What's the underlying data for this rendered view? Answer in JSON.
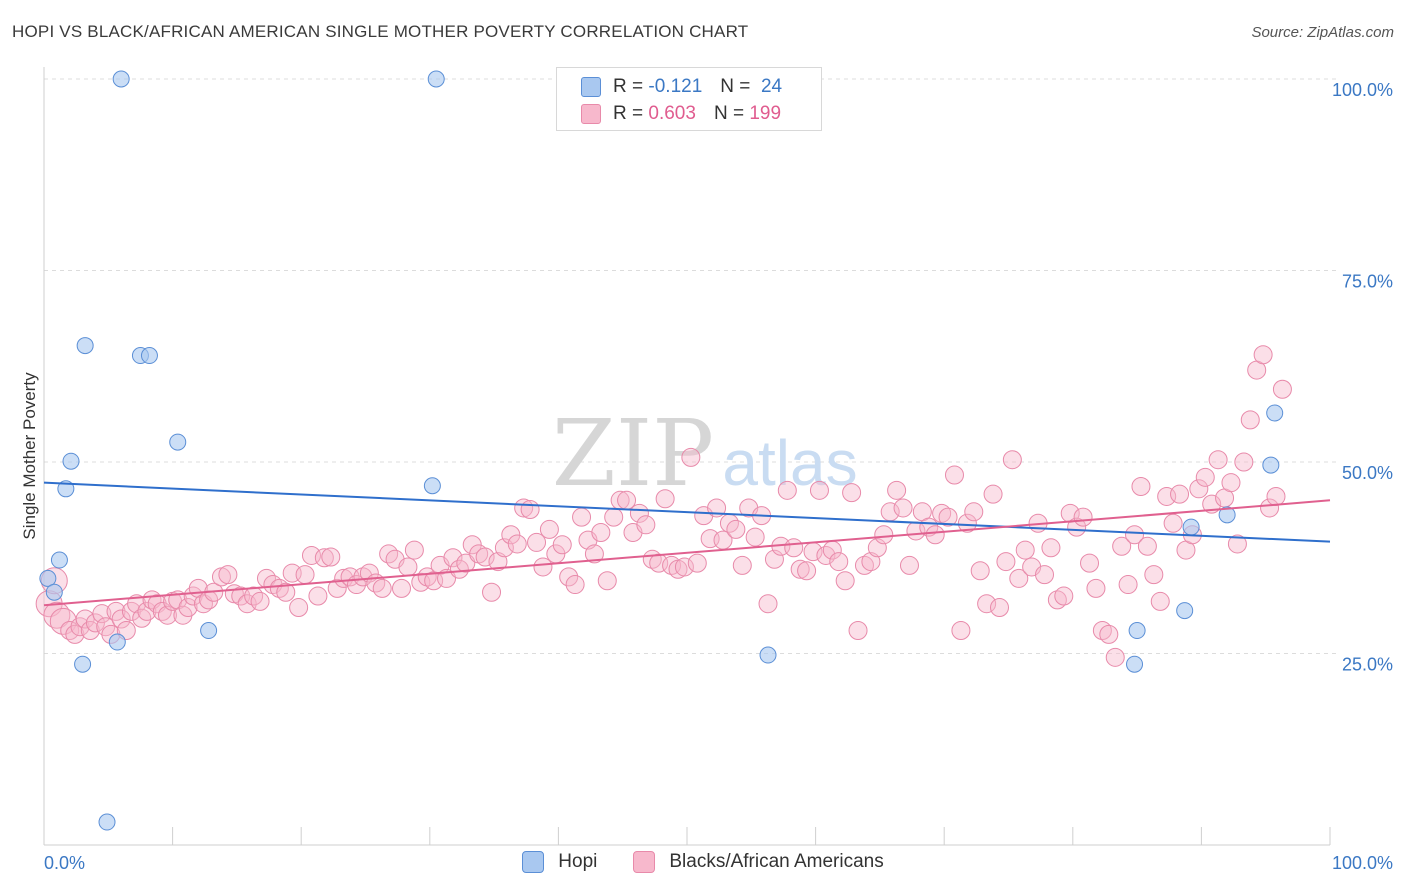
{
  "header": {
    "title": "HOPI VS BLACK/AFRICAN AMERICAN SINGLE MOTHER POVERTY CORRELATION CHART",
    "source": "Source: ZipAtlas.com"
  },
  "watermark": {
    "zip": "ZIP",
    "atlas": "atlas"
  },
  "legend": {
    "rows": [
      {
        "r_label": "R =",
        "r_value": "-0.121",
        "n_label": "N =",
        "n_value": "24",
        "color": "#a9c8f0"
      },
      {
        "r_label": "R =",
        "r_value": "0.603",
        "n_label": "N =",
        "n_value": "199",
        "color": "#f7b8cc"
      }
    ]
  },
  "bottom_legend": {
    "series1": "Hopi",
    "series2": "Blacks/African Americans"
  },
  "colors": {
    "hopi_fill": "#a9c8f0",
    "hopi_stroke": "#5b8fd6",
    "hopi_line": "#2f6fcc",
    "black_fill": "#f7b8cc",
    "black_stroke": "#e88aaa",
    "black_line": "#e0608f",
    "tick_label": "#3b78c4",
    "grid": "#dcdcdc"
  },
  "chart_data": {
    "type": "scatter",
    "title": "HOPI VS BLACK/AFRICAN AMERICAN SINGLE MOTHER POVERTY CORRELATION CHART",
    "xlabel": "",
    "ylabel": "Single Mother Poverty",
    "x_tick_labels": [
      "0.0%",
      "100.0%"
    ],
    "y_tick_labels": [
      "25.0%",
      "50.0%",
      "75.0%",
      "100.0%"
    ],
    "xlim": [
      0,
      100
    ],
    "ylim": [
      0,
      100
    ],
    "grid": true,
    "legend_position": "top-center",
    "series": [
      {
        "name": "Hopi",
        "stats": {
          "R": -0.121,
          "N": 24
        },
        "trend": [
          [
            0,
            47.3
          ],
          [
            100,
            39.6
          ]
        ],
        "points": [
          [
            0.3,
            34.8
          ],
          [
            0.8,
            33.0
          ],
          [
            1.2,
            37.2
          ],
          [
            1.7,
            46.5
          ],
          [
            2.1,
            50.1
          ],
          [
            3.0,
            23.6
          ],
          [
            3.2,
            65.2
          ],
          [
            5.7,
            26.5
          ],
          [
            6.0,
            100.0
          ],
          [
            4.9,
            3.0
          ],
          [
            7.5,
            63.9
          ],
          [
            8.2,
            63.9
          ],
          [
            10.4,
            52.6
          ],
          [
            12.8,
            28.0
          ],
          [
            30.2,
            46.9
          ],
          [
            30.5,
            100.0
          ],
          [
            56.3,
            24.8
          ],
          [
            84.8,
            23.6
          ],
          [
            85.0,
            28.0
          ],
          [
            88.7,
            30.6
          ],
          [
            89.2,
            41.5
          ],
          [
            92.0,
            43.1
          ],
          [
            95.4,
            49.6
          ],
          [
            95.7,
            56.4
          ]
        ]
      },
      {
        "name": "Blacks/African Americans",
        "stats": {
          "R": 0.603,
          "N": 199
        },
        "trend": [
          [
            0,
            31.3
          ],
          [
            100,
            45.0
          ]
        ],
        "points": [
          [
            0.4,
            31.5
          ],
          [
            0.8,
            34.5
          ],
          [
            1.0,
            30.0
          ],
          [
            1.5,
            29.2
          ],
          [
            2.0,
            28.0
          ],
          [
            2.4,
            27.5
          ],
          [
            2.8,
            28.5
          ],
          [
            3.2,
            29.5
          ],
          [
            3.6,
            28.0
          ],
          [
            4.0,
            29.0
          ],
          [
            4.5,
            30.2
          ],
          [
            4.8,
            28.5
          ],
          [
            5.2,
            27.5
          ],
          [
            5.6,
            30.5
          ],
          [
            6.0,
            29.5
          ],
          [
            6.4,
            28.0
          ],
          [
            6.8,
            30.5
          ],
          [
            7.2,
            31.5
          ],
          [
            7.6,
            29.6
          ],
          [
            8.0,
            30.5
          ],
          [
            8.4,
            32.0
          ],
          [
            8.8,
            31.5
          ],
          [
            9.2,
            30.5
          ],
          [
            9.6,
            30.0
          ],
          [
            10.0,
            31.8
          ],
          [
            10.4,
            32.0
          ],
          [
            10.8,
            30.0
          ],
          [
            11.2,
            31.0
          ],
          [
            11.6,
            32.5
          ],
          [
            12.0,
            33.5
          ],
          [
            12.4,
            31.5
          ],
          [
            12.8,
            32.0
          ],
          [
            13.2,
            33.0
          ],
          [
            13.8,
            35.0
          ],
          [
            14.3,
            35.3
          ],
          [
            14.8,
            32.8
          ],
          [
            15.3,
            32.5
          ],
          [
            15.8,
            31.5
          ],
          [
            16.3,
            32.5
          ],
          [
            16.8,
            31.8
          ],
          [
            17.3,
            34.8
          ],
          [
            17.8,
            34.0
          ],
          [
            18.3,
            33.5
          ],
          [
            18.8,
            33.0
          ],
          [
            19.3,
            35.5
          ],
          [
            19.8,
            31.0
          ],
          [
            20.3,
            35.3
          ],
          [
            20.8,
            37.8
          ],
          [
            21.3,
            32.5
          ],
          [
            21.8,
            37.5
          ],
          [
            22.3,
            37.6
          ],
          [
            22.8,
            33.5
          ],
          [
            23.3,
            34.8
          ],
          [
            23.8,
            35.0
          ],
          [
            24.3,
            34.0
          ],
          [
            24.8,
            35.0
          ],
          [
            25.3,
            35.5
          ],
          [
            25.8,
            34.2
          ],
          [
            26.3,
            33.5
          ],
          [
            26.8,
            38.0
          ],
          [
            27.3,
            37.3
          ],
          [
            27.8,
            33.5
          ],
          [
            28.3,
            36.3
          ],
          [
            28.8,
            38.5
          ],
          [
            29.3,
            34.3
          ],
          [
            29.8,
            35.0
          ],
          [
            30.3,
            34.5
          ],
          [
            30.8,
            36.5
          ],
          [
            31.3,
            34.8
          ],
          [
            31.8,
            37.5
          ],
          [
            32.3,
            36.0
          ],
          [
            32.8,
            36.8
          ],
          [
            33.3,
            39.2
          ],
          [
            33.8,
            38.0
          ],
          [
            34.3,
            37.6
          ],
          [
            34.8,
            33.0
          ],
          [
            35.3,
            37.0
          ],
          [
            35.8,
            38.8
          ],
          [
            36.3,
            40.5
          ],
          [
            36.8,
            39.3
          ],
          [
            37.3,
            44.0
          ],
          [
            37.8,
            43.8
          ],
          [
            38.3,
            39.5
          ],
          [
            38.8,
            36.3
          ],
          [
            39.3,
            41.2
          ],
          [
            39.8,
            38.0
          ],
          [
            40.3,
            39.2
          ],
          [
            40.8,
            35.0
          ],
          [
            41.3,
            34.0
          ],
          [
            41.8,
            42.8
          ],
          [
            42.3,
            39.8
          ],
          [
            42.8,
            38.0
          ],
          [
            43.3,
            40.8
          ],
          [
            43.8,
            34.5
          ],
          [
            44.3,
            42.8
          ],
          [
            44.8,
            45.0
          ],
          [
            45.3,
            45.0
          ],
          [
            45.8,
            40.8
          ],
          [
            46.3,
            43.3
          ],
          [
            46.8,
            41.8
          ],
          [
            47.3,
            37.3
          ],
          [
            47.8,
            36.8
          ],
          [
            48.3,
            45.2
          ],
          [
            48.8,
            36.5
          ],
          [
            49.3,
            36.0
          ],
          [
            49.8,
            36.3
          ],
          [
            50.3,
            50.6
          ],
          [
            50.8,
            36.8
          ],
          [
            51.3,
            43.0
          ],
          [
            51.8,
            40.0
          ],
          [
            52.3,
            44.0
          ],
          [
            52.8,
            39.8
          ],
          [
            53.3,
            42.0
          ],
          [
            53.8,
            41.2
          ],
          [
            54.3,
            36.5
          ],
          [
            54.8,
            44.0
          ],
          [
            55.3,
            40.2
          ],
          [
            55.8,
            43.0
          ],
          [
            56.3,
            31.5
          ],
          [
            56.8,
            37.3
          ],
          [
            57.3,
            39.0
          ],
          [
            57.8,
            46.3
          ],
          [
            58.3,
            38.8
          ],
          [
            58.8,
            36.0
          ],
          [
            59.3,
            35.8
          ],
          [
            59.8,
            38.3
          ],
          [
            60.3,
            46.3
          ],
          [
            60.8,
            37.8
          ],
          [
            61.3,
            38.5
          ],
          [
            61.8,
            37.0
          ],
          [
            62.3,
            34.5
          ],
          [
            62.8,
            46.0
          ],
          [
            63.3,
            28.0
          ],
          [
            63.8,
            36.5
          ],
          [
            64.3,
            37.0
          ],
          [
            64.8,
            38.8
          ],
          [
            65.3,
            40.5
          ],
          [
            65.8,
            43.5
          ],
          [
            66.3,
            46.3
          ],
          [
            66.8,
            44.0
          ],
          [
            67.3,
            36.5
          ],
          [
            67.8,
            41.0
          ],
          [
            68.3,
            43.5
          ],
          [
            68.8,
            41.5
          ],
          [
            69.3,
            40.5
          ],
          [
            69.8,
            43.3
          ],
          [
            70.3,
            42.8
          ],
          [
            70.8,
            48.3
          ],
          [
            71.3,
            28.0
          ],
          [
            71.8,
            42.0
          ],
          [
            72.3,
            43.5
          ],
          [
            72.8,
            35.8
          ],
          [
            73.3,
            31.5
          ],
          [
            73.8,
            45.8
          ],
          [
            74.3,
            31.0
          ],
          [
            74.8,
            37.0
          ],
          [
            75.3,
            50.3
          ],
          [
            75.8,
            34.8
          ],
          [
            76.3,
            38.5
          ],
          [
            76.8,
            36.3
          ],
          [
            77.3,
            42.0
          ],
          [
            77.8,
            35.3
          ],
          [
            78.3,
            38.8
          ],
          [
            78.8,
            32.0
          ],
          [
            79.3,
            32.5
          ],
          [
            79.8,
            43.3
          ],
          [
            80.3,
            41.5
          ],
          [
            80.8,
            42.8
          ],
          [
            81.3,
            36.8
          ],
          [
            81.8,
            33.5
          ],
          [
            82.3,
            28.0
          ],
          [
            82.8,
            27.5
          ],
          [
            83.3,
            24.5
          ],
          [
            83.8,
            39.0
          ],
          [
            84.3,
            34.0
          ],
          [
            84.8,
            40.5
          ],
          [
            85.3,
            46.8
          ],
          [
            85.8,
            39.0
          ],
          [
            86.3,
            35.3
          ],
          [
            86.8,
            31.8
          ],
          [
            87.3,
            45.5
          ],
          [
            87.8,
            42.0
          ],
          [
            88.3,
            45.8
          ],
          [
            88.8,
            38.5
          ],
          [
            89.3,
            40.5
          ],
          [
            89.8,
            46.5
          ],
          [
            90.3,
            48.0
          ],
          [
            90.8,
            44.5
          ],
          [
            91.3,
            50.3
          ],
          [
            91.8,
            45.3
          ],
          [
            92.3,
            47.3
          ],
          [
            92.8,
            39.3
          ],
          [
            93.3,
            50.0
          ],
          [
            93.8,
            55.5
          ],
          [
            94.3,
            62.0
          ],
          [
            94.8,
            64.0
          ],
          [
            95.3,
            44.0
          ],
          [
            95.8,
            45.5
          ],
          [
            96.3,
            59.5
          ]
        ]
      }
    ]
  }
}
